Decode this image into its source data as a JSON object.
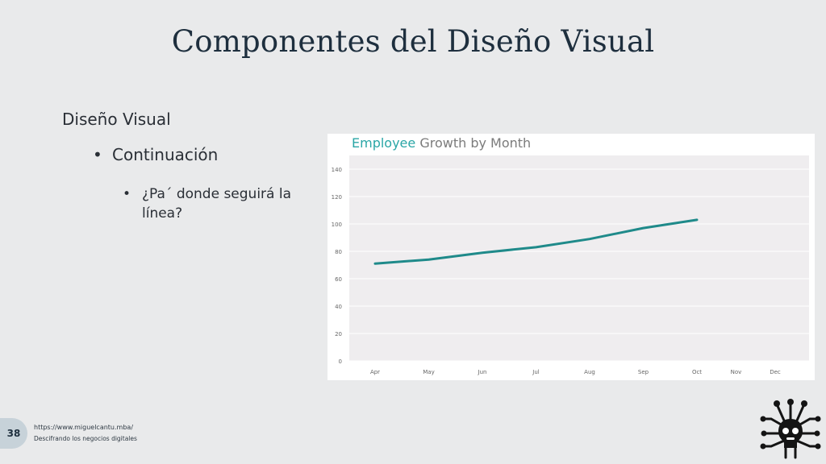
{
  "slide": {
    "title": "Componentes del Diseño Visual",
    "section": "Diseño Visual",
    "bullet_level1": "Continuación",
    "bullet_level2": "¿Pa´ donde seguirá la línea?",
    "bullet_glyph": "•",
    "page_number": "38",
    "footer_url": "https://www.miguelcantu.mba/",
    "footer_tagline": "Descifrando los negocios digitales"
  },
  "icons": {
    "logo": "lightbulb-circuit-icon"
  },
  "colors": {
    "background": "#e9eaeb",
    "title": "#1e2f3e",
    "line": "#1f8a8a",
    "title_accent": "#2aa6a6",
    "title_rest": "#7b7b7b",
    "plot_bg": "#efedef"
  },
  "chart_data": {
    "type": "line",
    "title": "Employee Growth by Month",
    "title_parts": [
      "Employee",
      " Growth by Month"
    ],
    "categories": [
      "Apr",
      "May",
      "Jun",
      "Jul",
      "Aug",
      "Sep",
      "Oct",
      "Nov",
      "Dec"
    ],
    "series": [
      {
        "values": [
          71,
          74,
          79,
          83,
          89,
          97,
          103,
          null,
          null
        ]
      }
    ],
    "yticks": [
      0,
      20,
      40,
      60,
      80,
      100,
      120,
      140
    ],
    "ylim": [
      0,
      150
    ],
    "grid": true,
    "xlabel": "",
    "ylabel": ""
  }
}
